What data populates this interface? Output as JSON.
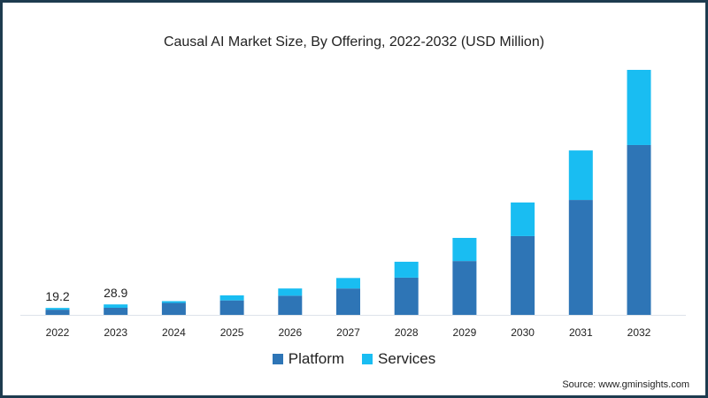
{
  "chart_data": {
    "type": "bar",
    "stacked": true,
    "title": "Causal AI Market Size, By Offering, 2022-2032 (USD Million)",
    "xlabel": "",
    "ylabel": "",
    "ylim": [
      0,
      700
    ],
    "grid": false,
    "legend_position": "bottom",
    "categories": [
      "2022",
      "2023",
      "2024",
      "2025",
      "2026",
      "2027",
      "2028",
      "2029",
      "2030",
      "2031",
      "2032"
    ],
    "series": [
      {
        "name": "Platform",
        "color": "#2e75b6",
        "values": [
          14.4,
          19.6,
          33,
          40,
          53,
          73,
          103,
          149,
          218,
          318,
          470
        ]
      },
      {
        "name": "Services",
        "color": "#19bdf2",
        "values": [
          4.8,
          9.3,
          5,
          14,
          20,
          29,
          44,
          64,
          93,
          137,
          208
        ]
      }
    ],
    "data_labels": [
      {
        "category": "2022",
        "text": "19.2"
      },
      {
        "category": "2023",
        "text": "28.9"
      }
    ],
    "source": "Source: www.gminsights.com"
  }
}
